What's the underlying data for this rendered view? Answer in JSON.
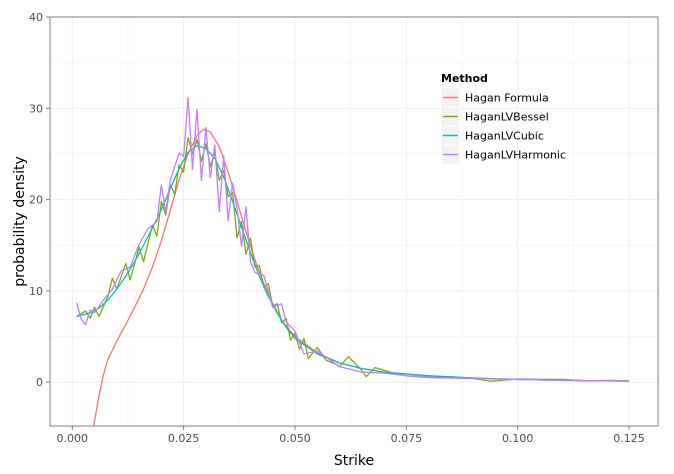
{
  "chart_data": {
    "type": "line",
    "xlabel": "Strike",
    "ylabel": "probability density",
    "xlim": [
      -0.005,
      0.1315
    ],
    "ylim": [
      -4.8,
      40
    ],
    "x_ticks": [
      0.0,
      0.025,
      0.05,
      0.075,
      0.1,
      0.125
    ],
    "x_tick_labels": [
      "0.000",
      "0.025",
      "0.050",
      "0.075",
      "0.100",
      "0.125"
    ],
    "y_ticks": [
      0,
      10,
      20,
      30,
      40
    ],
    "y_tick_labels": [
      "0",
      "10",
      "20",
      "30",
      "40"
    ],
    "grid": true,
    "legend": {
      "title": "Method",
      "position": "top-right"
    },
    "series": [
      {
        "name": "Hagan Formula",
        "color": "#F8766D",
        "points": [
          [
            0.0048,
            -4.8
          ],
          [
            0.006,
            -1.5
          ],
          [
            0.007,
            0.8
          ],
          [
            0.008,
            2.5
          ],
          [
            0.01,
            4.5
          ],
          [
            0.012,
            6.3
          ],
          [
            0.014,
            8.2
          ],
          [
            0.016,
            10.2
          ],
          [
            0.018,
            12.6
          ],
          [
            0.02,
            15.5
          ],
          [
            0.022,
            18.8
          ],
          [
            0.024,
            22.2
          ],
          [
            0.026,
            25.0
          ],
          [
            0.028,
            27.0
          ],
          [
            0.0295,
            27.7
          ],
          [
            0.031,
            27.4
          ],
          [
            0.033,
            25.8
          ],
          [
            0.035,
            23.0
          ],
          [
            0.037,
            19.8
          ],
          [
            0.039,
            16.5
          ],
          [
            0.041,
            13.4
          ],
          [
            0.043,
            10.8
          ],
          [
            0.045,
            8.6
          ],
          [
            0.047,
            6.8
          ],
          [
            0.05,
            5.0
          ],
          [
            0.055,
            3.2
          ],
          [
            0.06,
            2.1
          ],
          [
            0.065,
            1.5
          ],
          [
            0.07,
            1.1
          ],
          [
            0.08,
            0.7
          ],
          [
            0.09,
            0.45
          ],
          [
            0.1,
            0.3
          ],
          [
            0.11,
            0.2
          ],
          [
            0.125,
            0.12
          ]
        ]
      },
      {
        "name": "HaganLVBessel",
        "color": "#7CAE00",
        "points": [
          [
            0.001,
            7.2
          ],
          [
            0.002,
            7.5
          ],
          [
            0.003,
            7.8
          ],
          [
            0.004,
            7.0
          ],
          [
            0.005,
            8.2
          ],
          [
            0.006,
            7.2
          ],
          [
            0.008,
            9.4
          ],
          [
            0.009,
            11.4
          ],
          [
            0.01,
            10.2
          ],
          [
            0.012,
            13.0
          ],
          [
            0.013,
            11.2
          ],
          [
            0.015,
            14.8
          ],
          [
            0.016,
            13.2
          ],
          [
            0.018,
            17.2
          ],
          [
            0.019,
            16.0
          ],
          [
            0.02,
            19.8
          ],
          [
            0.021,
            18.3
          ],
          [
            0.022,
            21.6
          ],
          [
            0.023,
            20.6
          ],
          [
            0.024,
            23.8
          ],
          [
            0.025,
            23.0
          ],
          [
            0.026,
            26.8
          ],
          [
            0.027,
            25.0
          ],
          [
            0.028,
            26.6
          ],
          [
            0.029,
            24.2
          ],
          [
            0.03,
            26.1
          ],
          [
            0.031,
            23.6
          ],
          [
            0.032,
            25.2
          ],
          [
            0.033,
            22.1
          ],
          [
            0.034,
            23.2
          ],
          [
            0.035,
            20.3
          ],
          [
            0.036,
            20.8
          ],
          [
            0.037,
            15.8
          ],
          [
            0.038,
            17.6
          ],
          [
            0.039,
            14.0
          ],
          [
            0.04,
            15.8
          ],
          [
            0.041,
            12.6
          ],
          [
            0.042,
            12.8
          ],
          [
            0.043,
            10.4
          ],
          [
            0.044,
            10.8
          ],
          [
            0.045,
            8.3
          ],
          [
            0.046,
            8.6
          ],
          [
            0.047,
            6.5
          ],
          [
            0.048,
            7.0
          ],
          [
            0.049,
            4.6
          ],
          [
            0.05,
            5.4
          ],
          [
            0.051,
            3.6
          ],
          [
            0.052,
            4.8
          ],
          [
            0.053,
            2.6
          ],
          [
            0.055,
            3.8
          ],
          [
            0.057,
            2.4
          ],
          [
            0.059,
            2.0
          ],
          [
            0.06,
            1.7
          ],
          [
            0.062,
            2.8
          ],
          [
            0.065,
            1.3
          ],
          [
            0.066,
            0.6
          ],
          [
            0.068,
            1.6
          ],
          [
            0.072,
            1.0
          ],
          [
            0.075,
            0.7
          ],
          [
            0.078,
            0.6
          ],
          [
            0.081,
            0.5
          ],
          [
            0.085,
            0.6
          ],
          [
            0.09,
            0.4
          ],
          [
            0.094,
            0.1
          ],
          [
            0.1,
            0.35
          ],
          [
            0.11,
            0.3
          ],
          [
            0.115,
            0.15
          ],
          [
            0.12,
            0.2
          ],
          [
            0.125,
            0.15
          ]
        ]
      },
      {
        "name": "HaganLVCubic",
        "color": "#00BFC4",
        "points": [
          [
            0.001,
            7.2
          ],
          [
            0.004,
            7.6
          ],
          [
            0.006,
            8.1
          ],
          [
            0.008,
            9.0
          ],
          [
            0.01,
            10.2
          ],
          [
            0.012,
            11.6
          ],
          [
            0.014,
            13.2
          ],
          [
            0.016,
            15.0
          ],
          [
            0.018,
            16.9
          ],
          [
            0.02,
            18.9
          ],
          [
            0.022,
            21.2
          ],
          [
            0.024,
            23.4
          ],
          [
            0.026,
            25.2
          ],
          [
            0.028,
            25.9
          ],
          [
            0.03,
            25.6
          ],
          [
            0.032,
            24.5
          ],
          [
            0.034,
            22.5
          ],
          [
            0.036,
            19.8
          ],
          [
            0.038,
            17.0
          ],
          [
            0.04,
            14.2
          ],
          [
            0.042,
            11.6
          ],
          [
            0.044,
            9.4
          ],
          [
            0.046,
            7.6
          ],
          [
            0.048,
            6.0
          ],
          [
            0.05,
            4.8
          ],
          [
            0.055,
            3.1
          ],
          [
            0.06,
            2.1
          ],
          [
            0.065,
            1.5
          ],
          [
            0.07,
            1.1
          ],
          [
            0.08,
            0.7
          ],
          [
            0.09,
            0.45
          ],
          [
            0.1,
            0.3
          ],
          [
            0.11,
            0.2
          ],
          [
            0.125,
            0.12
          ]
        ]
      },
      {
        "name": "HaganLVHarmonic",
        "color": "#C77CFF",
        "points": [
          [
            0.001,
            8.7
          ],
          [
            0.002,
            6.9
          ],
          [
            0.003,
            6.3
          ],
          [
            0.004,
            7.9
          ],
          [
            0.005,
            7.6
          ],
          [
            0.007,
            9.0
          ],
          [
            0.009,
            10.2
          ],
          [
            0.011,
            12.2
          ],
          [
            0.013,
            12.6
          ],
          [
            0.015,
            15.1
          ],
          [
            0.017,
            16.8
          ],
          [
            0.019,
            17.6
          ],
          [
            0.02,
            21.6
          ],
          [
            0.021,
            18.6
          ],
          [
            0.022,
            22.1
          ],
          [
            0.023,
            23.6
          ],
          [
            0.024,
            25.1
          ],
          [
            0.025,
            24.7
          ],
          [
            0.026,
            31.2
          ],
          [
            0.027,
            23.3
          ],
          [
            0.028,
            29.9
          ],
          [
            0.029,
            22.1
          ],
          [
            0.03,
            27.9
          ],
          [
            0.031,
            22.4
          ],
          [
            0.032,
            26.0
          ],
          [
            0.033,
            18.7
          ],
          [
            0.034,
            24.8
          ],
          [
            0.035,
            17.7
          ],
          [
            0.036,
            21.8
          ],
          [
            0.037,
            19.0
          ],
          [
            0.038,
            14.9
          ],
          [
            0.039,
            19.2
          ],
          [
            0.04,
            13.2
          ],
          [
            0.041,
            12.0
          ],
          [
            0.043,
            11.7
          ],
          [
            0.045,
            8.2
          ],
          [
            0.047,
            8.6
          ],
          [
            0.048,
            6.6
          ],
          [
            0.05,
            5.6
          ],
          [
            0.052,
            3.1
          ],
          [
            0.055,
            3.4
          ],
          [
            0.06,
            1.7
          ],
          [
            0.065,
            1.1
          ],
          [
            0.07,
            1.0
          ],
          [
            0.075,
            0.7
          ],
          [
            0.08,
            0.5
          ],
          [
            0.09,
            0.4
          ],
          [
            0.1,
            0.3
          ],
          [
            0.11,
            0.2
          ],
          [
            0.125,
            0.12
          ]
        ]
      }
    ]
  }
}
